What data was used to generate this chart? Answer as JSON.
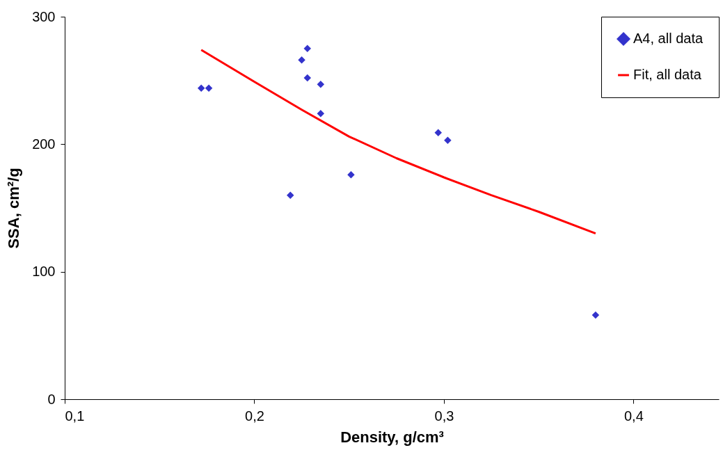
{
  "chart_data": {
    "type": "scatter",
    "xlabel": "Density, g/cm³",
    "ylabel": "SSA, cm²/g",
    "xlim": [
      0.1,
      0.445
    ],
    "ylim": [
      0,
      300
    ],
    "xticks": [
      {
        "value": 0.1,
        "label": "0,1"
      },
      {
        "value": 0.2,
        "label": "0,2"
      },
      {
        "value": 0.3,
        "label": "0,3"
      },
      {
        "value": 0.4,
        "label": "0,4"
      }
    ],
    "yticks": [
      0,
      100,
      200,
      300
    ],
    "grid": false,
    "legend": "top right",
    "series": [
      {
        "name": "A4, all data",
        "marker": "diamond",
        "color": "#3333cc",
        "x": [
          0.172,
          0.176,
          0.219,
          0.225,
          0.228,
          0.228,
          0.235,
          0.235,
          0.251,
          0.297,
          0.302,
          0.38
        ],
        "values": [
          244,
          244,
          160,
          266,
          275,
          252,
          247,
          224,
          176,
          209,
          203,
          66
        ]
      },
      {
        "name": "Fit, all data",
        "type": "line",
        "marker": "none",
        "line_style": "solid",
        "color": "#ff0000",
        "x": [
          0.172,
          0.2,
          0.225,
          0.25,
          0.275,
          0.3,
          0.325,
          0.35,
          0.38
        ],
        "values": [
          274,
          249,
          227,
          206,
          189,
          174,
          160,
          147,
          130
        ]
      }
    ]
  }
}
